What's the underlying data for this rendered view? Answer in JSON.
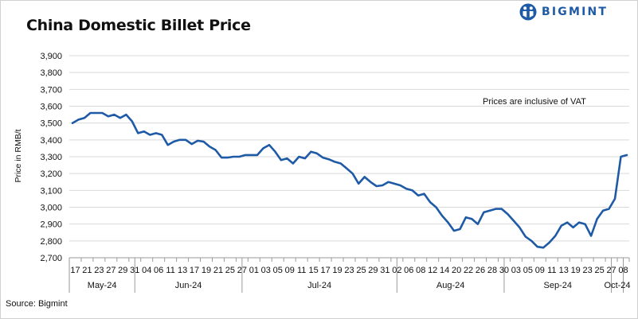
{
  "title": "China Domestic Billet Price",
  "brand": {
    "name": "BIGMINT",
    "color": "#1f5aa6",
    "icon": "bigmint-logo-icon"
  },
  "source": "Source: Bigmint",
  "chart_data": {
    "type": "line",
    "ylabel": "Price in RMB/t",
    "ylim": [
      2700,
      3900
    ],
    "yticks": [
      2700,
      2800,
      2900,
      3000,
      3100,
      3200,
      3300,
      3400,
      3500,
      3600,
      3700,
      3800,
      3900
    ],
    "ytick_labels": [
      "2,700",
      "2,800",
      "2,900",
      "3,000",
      "3,100",
      "3,200",
      "3,300",
      "3,400",
      "3,500",
      "3,600",
      "3,700",
      "3,800",
      "3,900"
    ],
    "grid": "horizontal",
    "line_color": "#1f5aa6",
    "annotation": "Prices are inclusive of VAT",
    "x_labels": [
      "17",
      "21",
      "23",
      "27",
      "29",
      "31",
      "04",
      "06",
      "11",
      "13",
      "17",
      "19",
      "21",
      "25",
      "27",
      "01",
      "03",
      "05",
      "09",
      "11",
      "15",
      "17",
      "19",
      "23",
      "25",
      "29",
      "31",
      "02",
      "06",
      "08",
      "12",
      "14",
      "20",
      "22",
      "26",
      "28",
      "30",
      "03",
      "05",
      "09",
      "11",
      "13",
      "19",
      "23",
      "25",
      "27",
      "08"
    ],
    "months": [
      {
        "label": "May-24",
        "start": 0,
        "end": 5.5
      },
      {
        "label": "Jun-24",
        "start": 5.5,
        "end": 14.5
      },
      {
        "label": "Jul-24",
        "start": 14.5,
        "end": 27.5
      },
      {
        "label": "Aug-24",
        "start": 27.5,
        "end": 36.5
      },
      {
        "label": "Sep-24",
        "start": 36.5,
        "end": 45.5
      },
      {
        "label": "Oct-24",
        "start": 45.5,
        "end": 46.5
      }
    ],
    "series": [
      {
        "values": [
          3500,
          3520,
          3530,
          3560,
          3560,
          3560,
          3540,
          3550,
          3530,
          3550,
          3510,
          3440,
          3450,
          3430,
          3440,
          3430,
          3370,
          3390,
          3400,
          3400,
          3375,
          3395,
          3390,
          3360,
          3340,
          3295,
          3295,
          3300,
          3300,
          3310,
          3310,
          3310,
          3350,
          3370,
          3330,
          3280,
          3290,
          3260,
          3300,
          3290,
          3330,
          3320,
          3295,
          3285,
          3270,
          3260,
          3230,
          3200,
          3140,
          3180,
          3150,
          3125,
          3130,
          3150,
          3140,
          3130,
          3110,
          3100,
          3070,
          3080,
          3030,
          3000,
          2950,
          2910,
          2860,
          2870,
          2940,
          2930,
          2900,
          2970,
          2980,
          2990,
          2990,
          2960,
          2920,
          2880,
          2825,
          2800,
          2765,
          2760,
          2790,
          2830,
          2890,
          2910,
          2880,
          2910,
          2900,
          2830,
          2930,
          2980,
          2990,
          3050,
          3300,
          3310
        ]
      }
    ]
  }
}
